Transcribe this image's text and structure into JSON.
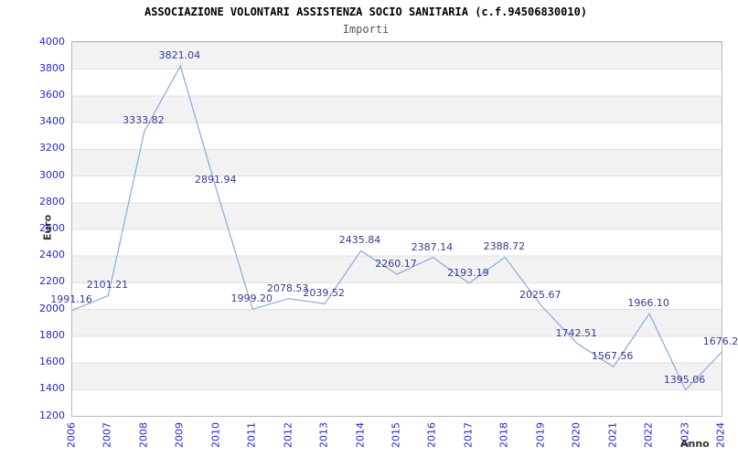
{
  "header": {
    "title": "ASSOCIAZIONE VOLONTARI ASSISTENZA SOCIO SANITARIA (c.f.94506830010)",
    "subtitle": "Importi"
  },
  "chart_data": {
    "type": "line",
    "title": "ASSOCIAZIONE VOLONTARI ASSISTENZA SOCIO SANITARIA (c.f.94506830010)",
    "subtitle": "Importi",
    "xlabel": "Anno",
    "ylabel": "Euro",
    "x": [
      "2006",
      "2007",
      "2008",
      "2009",
      "2010",
      "2011",
      "2012",
      "2013",
      "2014",
      "2015",
      "2016",
      "2017",
      "2018",
      "2019",
      "2020",
      "2021",
      "2022",
      "2023",
      "2024"
    ],
    "series": [
      {
        "name": "Importi",
        "values": [
          1991.16,
          2101.21,
          3333.82,
          3821.04,
          2891.94,
          1999.2,
          2078.53,
          2039.52,
          2435.84,
          2260.17,
          2387.14,
          2193.19,
          2388.72,
          2025.67,
          1742.51,
          1567.56,
          1966.1,
          1395.06,
          1676.2
        ]
      }
    ],
    "point_labels": [
      "1991.16",
      "2101.21",
      "3333.82",
      "3821.04",
      "2891.94",
      "1999.20",
      "2078.53",
      "2039.52",
      "2435.84",
      "2260.17",
      "2387.14",
      "2193.19",
      "2388.72",
      "2025.67",
      "1742.51",
      "1567.56",
      "1966.10",
      "1395.06",
      "1676.2"
    ],
    "ylim": [
      1200,
      4000
    ],
    "yticks": [
      4000,
      3800,
      3600,
      3400,
      3200,
      3000,
      2800,
      2600,
      2400,
      2200,
      2000,
      1800,
      1600,
      1400,
      1200
    ],
    "grid": "horizontal gridlines every 200 with alternating gray/white bands, gray topmost (3800-4000)",
    "legend": "none",
    "colors": {
      "line": "#85abdf",
      "point_label": "#343b92",
      "axis_tick": "#2626d0",
      "band_gray": "#f2f2f2",
      "gridline": "#e0e0e0",
      "plot_border": "#b9b9b9",
      "title": "#000000",
      "subtitle": "#555555",
      "axis_title": "#333333"
    }
  }
}
